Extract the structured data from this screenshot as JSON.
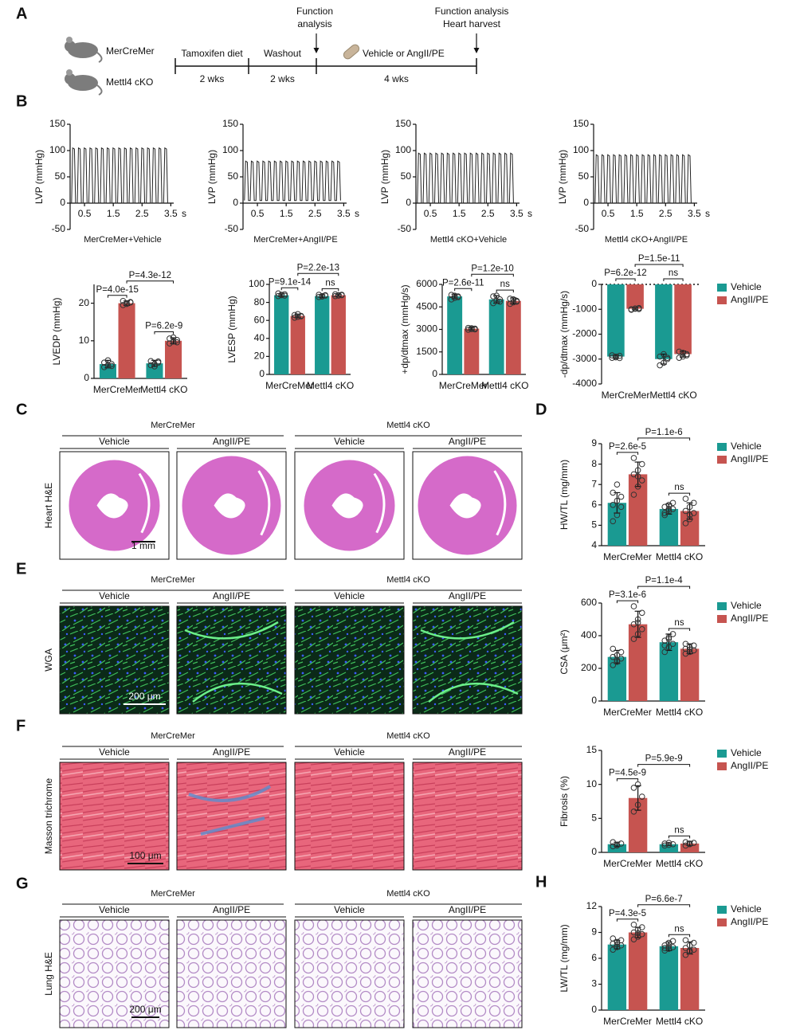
{
  "panel_labels": [
    "A",
    "B",
    "C",
    "D",
    "E",
    "F",
    "G",
    "H"
  ],
  "timeline": {
    "groups": [
      "MerCreMer",
      "Mettl4 cKO"
    ],
    "phases": [
      {
        "label": "Tamoxifen diet",
        "duration": "2 wks"
      },
      {
        "label": "Washout",
        "duration": "2 wks"
      },
      {
        "label": "Vehicle or AngII/PE",
        "duration": "4 wks"
      }
    ],
    "events": [
      [
        "Function",
        "analysis"
      ],
      [
        "Function analysis",
        "Heart harvest"
      ]
    ]
  },
  "chart_data": [
    {
      "type": "line",
      "y_label": "LVP (mmHg)",
      "x_unit": "s",
      "xlim": [
        0,
        3.6
      ],
      "ylim": [
        -50,
        150
      ],
      "xticks": [
        0.5,
        1.5,
        2.5,
        3.5
      ],
      "yticks": [
        -50,
        0,
        50,
        100,
        150
      ],
      "x": [
        0.05,
        0.09,
        0.15,
        0.19,
        0.25,
        0.29,
        0.35,
        0.39,
        0.45,
        0.49,
        0.55,
        0.59,
        0.65,
        0.69,
        0.75,
        0.79,
        0.85,
        0.89,
        0.95,
        0.99,
        1.05,
        1.09,
        1.15,
        1.19,
        1.25,
        1.29,
        1.35,
        1.39,
        1.45,
        1.49,
        1.55,
        1.59,
        1.65,
        1.69,
        1.75,
        1.79,
        1.85,
        1.89,
        1.95,
        1.99,
        2.05,
        2.09,
        2.15,
        2.19,
        2.25,
        2.29,
        2.35,
        2.39,
        2.45,
        2.49,
        2.55,
        2.59,
        2.65,
        2.69,
        2.75,
        2.79,
        2.85,
        2.89,
        2.95,
        2.99,
        3.05,
        3.09,
        3.15,
        3.19,
        3.25,
        3.29,
        3.35,
        3.39
      ],
      "series": [
        {
          "name": "MerCreMer+Vehicle",
          "color": "#222222",
          "values": [
            0,
            105,
            103,
            0,
            0,
            105,
            103,
            0,
            0,
            105,
            103,
            0,
            0,
            105,
            103,
            0,
            0,
            105,
            103,
            0,
            0,
            105,
            103,
            0,
            0,
            105,
            103,
            0,
            0,
            105,
            103,
            0,
            0,
            105,
            103,
            0,
            0,
            105,
            103,
            0,
            0,
            105,
            103,
            0,
            0,
            105,
            103,
            0,
            0,
            105,
            103,
            0,
            0,
            105,
            103,
            0,
            0,
            105,
            103,
            0,
            0,
            105,
            103,
            0,
            0,
            105,
            103,
            0
          ]
        },
        {
          "name": "MerCreMer+AngII/PE",
          "color": "#222222",
          "values": [
            5,
            80,
            78,
            5,
            5,
            80,
            78,
            5,
            5,
            80,
            78,
            5,
            5,
            80,
            78,
            5,
            5,
            80,
            78,
            5,
            5,
            80,
            78,
            5,
            5,
            80,
            78,
            5,
            5,
            80,
            78,
            5,
            5,
            80,
            78,
            5,
            5,
            80,
            78,
            5,
            5,
            80,
            78,
            5,
            5,
            80,
            78,
            5,
            5,
            80,
            78,
            5,
            5,
            80,
            78,
            5,
            5,
            80,
            78,
            5,
            5,
            80,
            78,
            5,
            5,
            80,
            78,
            5
          ]
        },
        {
          "name": "Mettl4 cKO+Vehicle",
          "color": "#222222",
          "values": [
            0,
            95,
            93,
            0,
            0,
            95,
            93,
            0,
            0,
            95,
            93,
            0,
            0,
            95,
            93,
            0,
            0,
            95,
            93,
            0,
            0,
            95,
            93,
            0,
            0,
            95,
            93,
            0,
            0,
            95,
            93,
            0,
            0,
            95,
            93,
            0,
            0,
            95,
            93,
            0,
            0,
            95,
            93,
            0,
            0,
            95,
            93,
            0,
            0,
            95,
            93,
            0,
            0,
            95,
            93,
            0,
            0,
            95,
            93,
            0,
            0,
            95,
            93,
            0,
            0,
            95,
            93,
            0
          ]
        },
        {
          "name": "Mettl4 cKO+AngII/PE",
          "color": "#222222",
          "values": [
            0,
            92,
            90,
            0,
            0,
            92,
            90,
            0,
            0,
            92,
            90,
            0,
            0,
            92,
            90,
            0,
            0,
            92,
            90,
            0,
            0,
            92,
            90,
            0,
            0,
            92,
            90,
            0,
            0,
            92,
            90,
            0,
            0,
            92,
            90,
            0,
            0,
            92,
            90,
            0,
            0,
            92,
            90,
            0,
            0,
            92,
            90,
            0,
            0,
            92,
            90,
            0,
            0,
            92,
            90,
            0,
            0,
            92,
            90,
            0,
            0,
            92,
            90,
            0,
            0,
            92,
            90,
            0
          ]
        }
      ]
    },
    {
      "type": "bar",
      "y_label": "LVEDP (mmHg)",
      "categories": [
        "MerCreMer",
        "Mettl4 cKO"
      ],
      "ylim": [
        0,
        25
      ],
      "yticks": [
        0,
        10,
        20
      ],
      "series": [
        {
          "color": "#1a9a92",
          "values": [
            3.8,
            4.0
          ],
          "errors": [
            1.0,
            0.8
          ],
          "points": [
            [
              3.0,
              3.5,
              3.8,
              4.2,
              4.8,
              3.3
            ],
            [
              3.5,
              3.8,
              4.2,
              4.6,
              3.2,
              4.5
            ]
          ]
        },
        {
          "color": "#c65450",
          "values": [
            20.0,
            10.0
          ],
          "errors": [
            0.6,
            0.8
          ],
          "points": [
            [
              19.5,
              20.0,
              20.3,
              20.6,
              19.8,
              20.2
            ],
            [
              9.3,
              9.8,
              10.2,
              10.6,
              10.9,
              9.6
            ]
          ]
        }
      ],
      "annotations": [
        "P=4.0e-15",
        "P=4.3e-12",
        "P=6.2e-9"
      ]
    },
    {
      "type": "bar",
      "y_label": "LVESP (mmHg)",
      "categories": [
        "MerCreMer",
        "Mettl4 cKO"
      ],
      "ylim": [
        0,
        100
      ],
      "yticks": [
        0,
        20,
        40,
        60,
        80,
        100
      ],
      "series": [
        {
          "color": "#1a9a92",
          "values": [
            88,
            87
          ],
          "errors": [
            1.5,
            1.5
          ],
          "points": [
            [
              87,
              88,
              89,
              90,
              88.5,
              87.5
            ],
            [
              86,
              87,
              88,
              88.5,
              86.5,
              87.5
            ]
          ]
        },
        {
          "color": "#c65450",
          "values": [
            65,
            88
          ],
          "errors": [
            2,
            1
          ],
          "points": [
            [
              63,
              64,
              65,
              66,
              67,
              64.5
            ],
            [
              87,
              88,
              88.5,
              89,
              87.5,
              88
            ]
          ]
        }
      ],
      "annotations": [
        "P=9.1e-14",
        "P=2.2e-13",
        "ns"
      ]
    },
    {
      "type": "bar",
      "y_label": "+dp/dtmax (mmHg/s)",
      "categories": [
        "MerCreMer",
        "Mettl4 cKO"
      ],
      "ylim": [
        0,
        6000
      ],
      "yticks": [
        0,
        1500,
        3000,
        4500,
        6000
      ],
      "series": [
        {
          "color": "#1a9a92",
          "values": [
            5200,
            5000
          ],
          "errors": [
            150,
            250
          ],
          "points": [
            [
              5000,
              5100,
              5200,
              5300,
              5250,
              5150
            ],
            [
              4750,
              4900,
              5000,
              5200,
              5250,
              4850
            ]
          ]
        },
        {
          "color": "#c65450",
          "values": [
            3050,
            4900
          ],
          "errors": [
            80,
            200
          ],
          "points": [
            [
              2980,
              3020,
              3050,
              3100,
              3080,
              3000
            ],
            [
              4700,
              4800,
              4900,
              5050,
              5000,
              4850
            ]
          ]
        }
      ],
      "annotations": [
        "P=2.6e-11",
        "P=1.2e-10",
        "ns"
      ]
    },
    {
      "type": "bar",
      "y_label": "-dp/dtmax (mmHg/s)",
      "categories": [
        "MerCreMer",
        "Mettl4 cKO"
      ],
      "ylim": [
        -4000,
        0
      ],
      "yticks": [
        -4000,
        -3000,
        -2000,
        -1000,
        0
      ],
      "legend": "right",
      "series": [
        {
          "name": "Vehicle",
          "color": "#1a9a92",
          "values": [
            -2900,
            -3000
          ],
          "errors": [
            60,
            200
          ],
          "points": [
            [
              -2950,
              -2900,
              -2870,
              -2850,
              -2930,
              -2960
            ],
            [
              -3250,
              -3150,
              -2950,
              -2900,
              -2800,
              -3000
            ]
          ]
        },
        {
          "name": "AngII/PE",
          "color": "#c65450",
          "values": [
            -980,
            -2800
          ],
          "errors": [
            40,
            120
          ],
          "points": [
            [
              -1020,
              -980,
              -950,
              -1000,
              -970,
              -990
            ],
            [
              -2950,
              -2900,
              -2800,
              -2700,
              -2750,
              -2850
            ]
          ]
        }
      ],
      "annotations": [
        "P=6.2e-12",
        "P=1.5e-11",
        "ns"
      ]
    },
    {
      "type": "bar",
      "y_label": "HW/TL (mg/mm)",
      "categories": [
        "MerCreMer",
        "Mettl4 cKO"
      ],
      "ylim": [
        4,
        9
      ],
      "yticks": [
        4,
        5,
        6,
        7,
        8,
        9
      ],
      "legend": "right",
      "series": [
        {
          "name": "Vehicle",
          "color": "#1a9a92",
          "values": [
            6.1,
            5.8
          ],
          "errors": [
            0.5,
            0.25
          ],
          "points": [
            [
              5.2,
              5.5,
              5.9,
              6.0,
              6.2,
              6.4,
              6.6,
              7.0
            ],
            [
              5.5,
              5.7,
              5.8,
              5.9,
              6.0,
              6.1,
              5.6,
              5.8
            ]
          ]
        },
        {
          "name": "AngII/PE",
          "color": "#c65450",
          "values": [
            7.5,
            5.7
          ],
          "errors": [
            0.6,
            0.4
          ],
          "points": [
            [
              6.5,
              6.9,
              7.2,
              7.5,
              7.7,
              8.0,
              8.3,
              7.4
            ],
            [
              5.1,
              5.3,
              5.6,
              5.7,
              5.9,
              6.1,
              6.3,
              5.5
            ]
          ]
        }
      ],
      "annotations": [
        "P=2.6e-5",
        "P=1.1e-6",
        "ns"
      ]
    },
    {
      "type": "bar",
      "y_label": "CSA (μm²)",
      "categories": [
        "MerCreMer",
        "Mettl4 cKO"
      ],
      "ylim": [
        0,
        600
      ],
      "yticks": [
        0,
        200,
        400,
        600
      ],
      "legend": "right",
      "series": [
        {
          "name": "Vehicle",
          "color": "#1a9a92",
          "values": [
            270,
            360
          ],
          "errors": [
            40,
            50
          ],
          "points": [
            [
              220,
              240,
              260,
              270,
              280,
              300,
              320,
              250
            ],
            [
              300,
              330,
              350,
              370,
              390,
              410,
              340,
              380
            ]
          ]
        },
        {
          "name": "AngII/PE",
          "color": "#c65450",
          "values": [
            470,
            320
          ],
          "errors": [
            80,
            30
          ],
          "points": [
            [
              380,
              410,
              440,
              470,
              500,
              540,
              580,
              480
            ],
            [
              290,
              300,
              310,
              320,
              330,
              340,
              350,
              315
            ]
          ]
        }
      ],
      "annotations": [
        "P=3.1e-6",
        "P=1.1e-4",
        "ns"
      ]
    },
    {
      "type": "bar",
      "y_label": "Fibrosis (%)",
      "categories": [
        "MerCreMer",
        "Mettl4 cKO"
      ],
      "ylim": [
        0,
        15
      ],
      "yticks": [
        0,
        5,
        10,
        15
      ],
      "legend": "right",
      "series": [
        {
          "name": "Vehicle",
          "color": "#1a9a92",
          "values": [
            1.2,
            1.2
          ],
          "errors": [
            0.3,
            0.2
          ],
          "points": [
            [
              0.9,
              1.1,
              1.3,
              1.5,
              1.0
            ],
            [
              1.0,
              1.1,
              1.2,
              1.3,
              1.4
            ]
          ]
        },
        {
          "name": "AngII/PE",
          "color": "#c65450",
          "values": [
            8.0,
            1.3
          ],
          "errors": [
            1.8,
            0.3
          ],
          "points": [
            [
              6,
              7,
              8.2,
              9.5,
              10
            ],
            [
              1.0,
              1.2,
              1.4,
              1.5,
              1.3
            ]
          ]
        }
      ],
      "annotations": [
        "P=4.5e-9",
        "P=5.9e-9",
        "ns"
      ]
    },
    {
      "type": "bar",
      "y_label": "LW/TL (mg/mm)",
      "categories": [
        "MerCreMer",
        "Mettl4 cKO"
      ],
      "ylim": [
        0,
        12
      ],
      "yticks": [
        0,
        3,
        6,
        9,
        12
      ],
      "legend": "right",
      "series": [
        {
          "name": "Vehicle",
          "color": "#1a9a92",
          "values": [
            7.6,
            7.4
          ],
          "errors": [
            0.5,
            0.5
          ],
          "points": [
            [
              7.0,
              7.3,
              7.5,
              7.7,
              7.9,
              8.1,
              8.3,
              7.6
            ],
            [
              6.9,
              7.1,
              7.3,
              7.5,
              7.8,
              8.0,
              7.2,
              7.4
            ]
          ]
        },
        {
          "name": "AngII/PE",
          "color": "#c65450",
          "values": [
            9.0,
            7.2
          ],
          "errors": [
            0.6,
            0.7
          ],
          "points": [
            [
              8.2,
              8.5,
              8.8,
              9.0,
              9.3,
              9.6,
              9.9,
              8.9
            ],
            [
              6.4,
              6.8,
              7.0,
              7.2,
              7.5,
              7.8,
              8.1,
              6.9
            ]
          ]
        }
      ],
      "annotations": [
        "P=4.3e-5",
        "P=6.6e-7",
        "ns"
      ]
    }
  ],
  "histology": [
    {
      "stain": "Heart H&E",
      "groups": [
        "MerCreMer",
        "Mettl4 cKO"
      ],
      "conditions": [
        "Vehicle",
        "AngII/PE",
        "Vehicle",
        "AngII/PE"
      ],
      "scale_bar": "1 mm"
    },
    {
      "stain": "WGA",
      "groups": [
        "MerCreMer",
        "Mettl4 cKO"
      ],
      "conditions": [
        "Vehicle",
        "AngII/PE",
        "Vehicle",
        "AngII/PE"
      ],
      "scale_bar": "200 μm"
    },
    {
      "stain": "Masson trichrome",
      "groups": [
        "MerCreMer",
        "Mettl4 cKO"
      ],
      "conditions": [
        "Vehicle",
        "AngII/PE",
        "Vehicle",
        "AngII/PE"
      ],
      "scale_bar": "100 μm"
    },
    {
      "stain": "Lung H&E",
      "groups": [
        "MerCreMer",
        "Mettl4 cKO"
      ],
      "conditions": [
        "Vehicle",
        "AngII/PE",
        "Vehicle",
        "AngII/PE"
      ],
      "scale_bar": "200 μm"
    }
  ]
}
